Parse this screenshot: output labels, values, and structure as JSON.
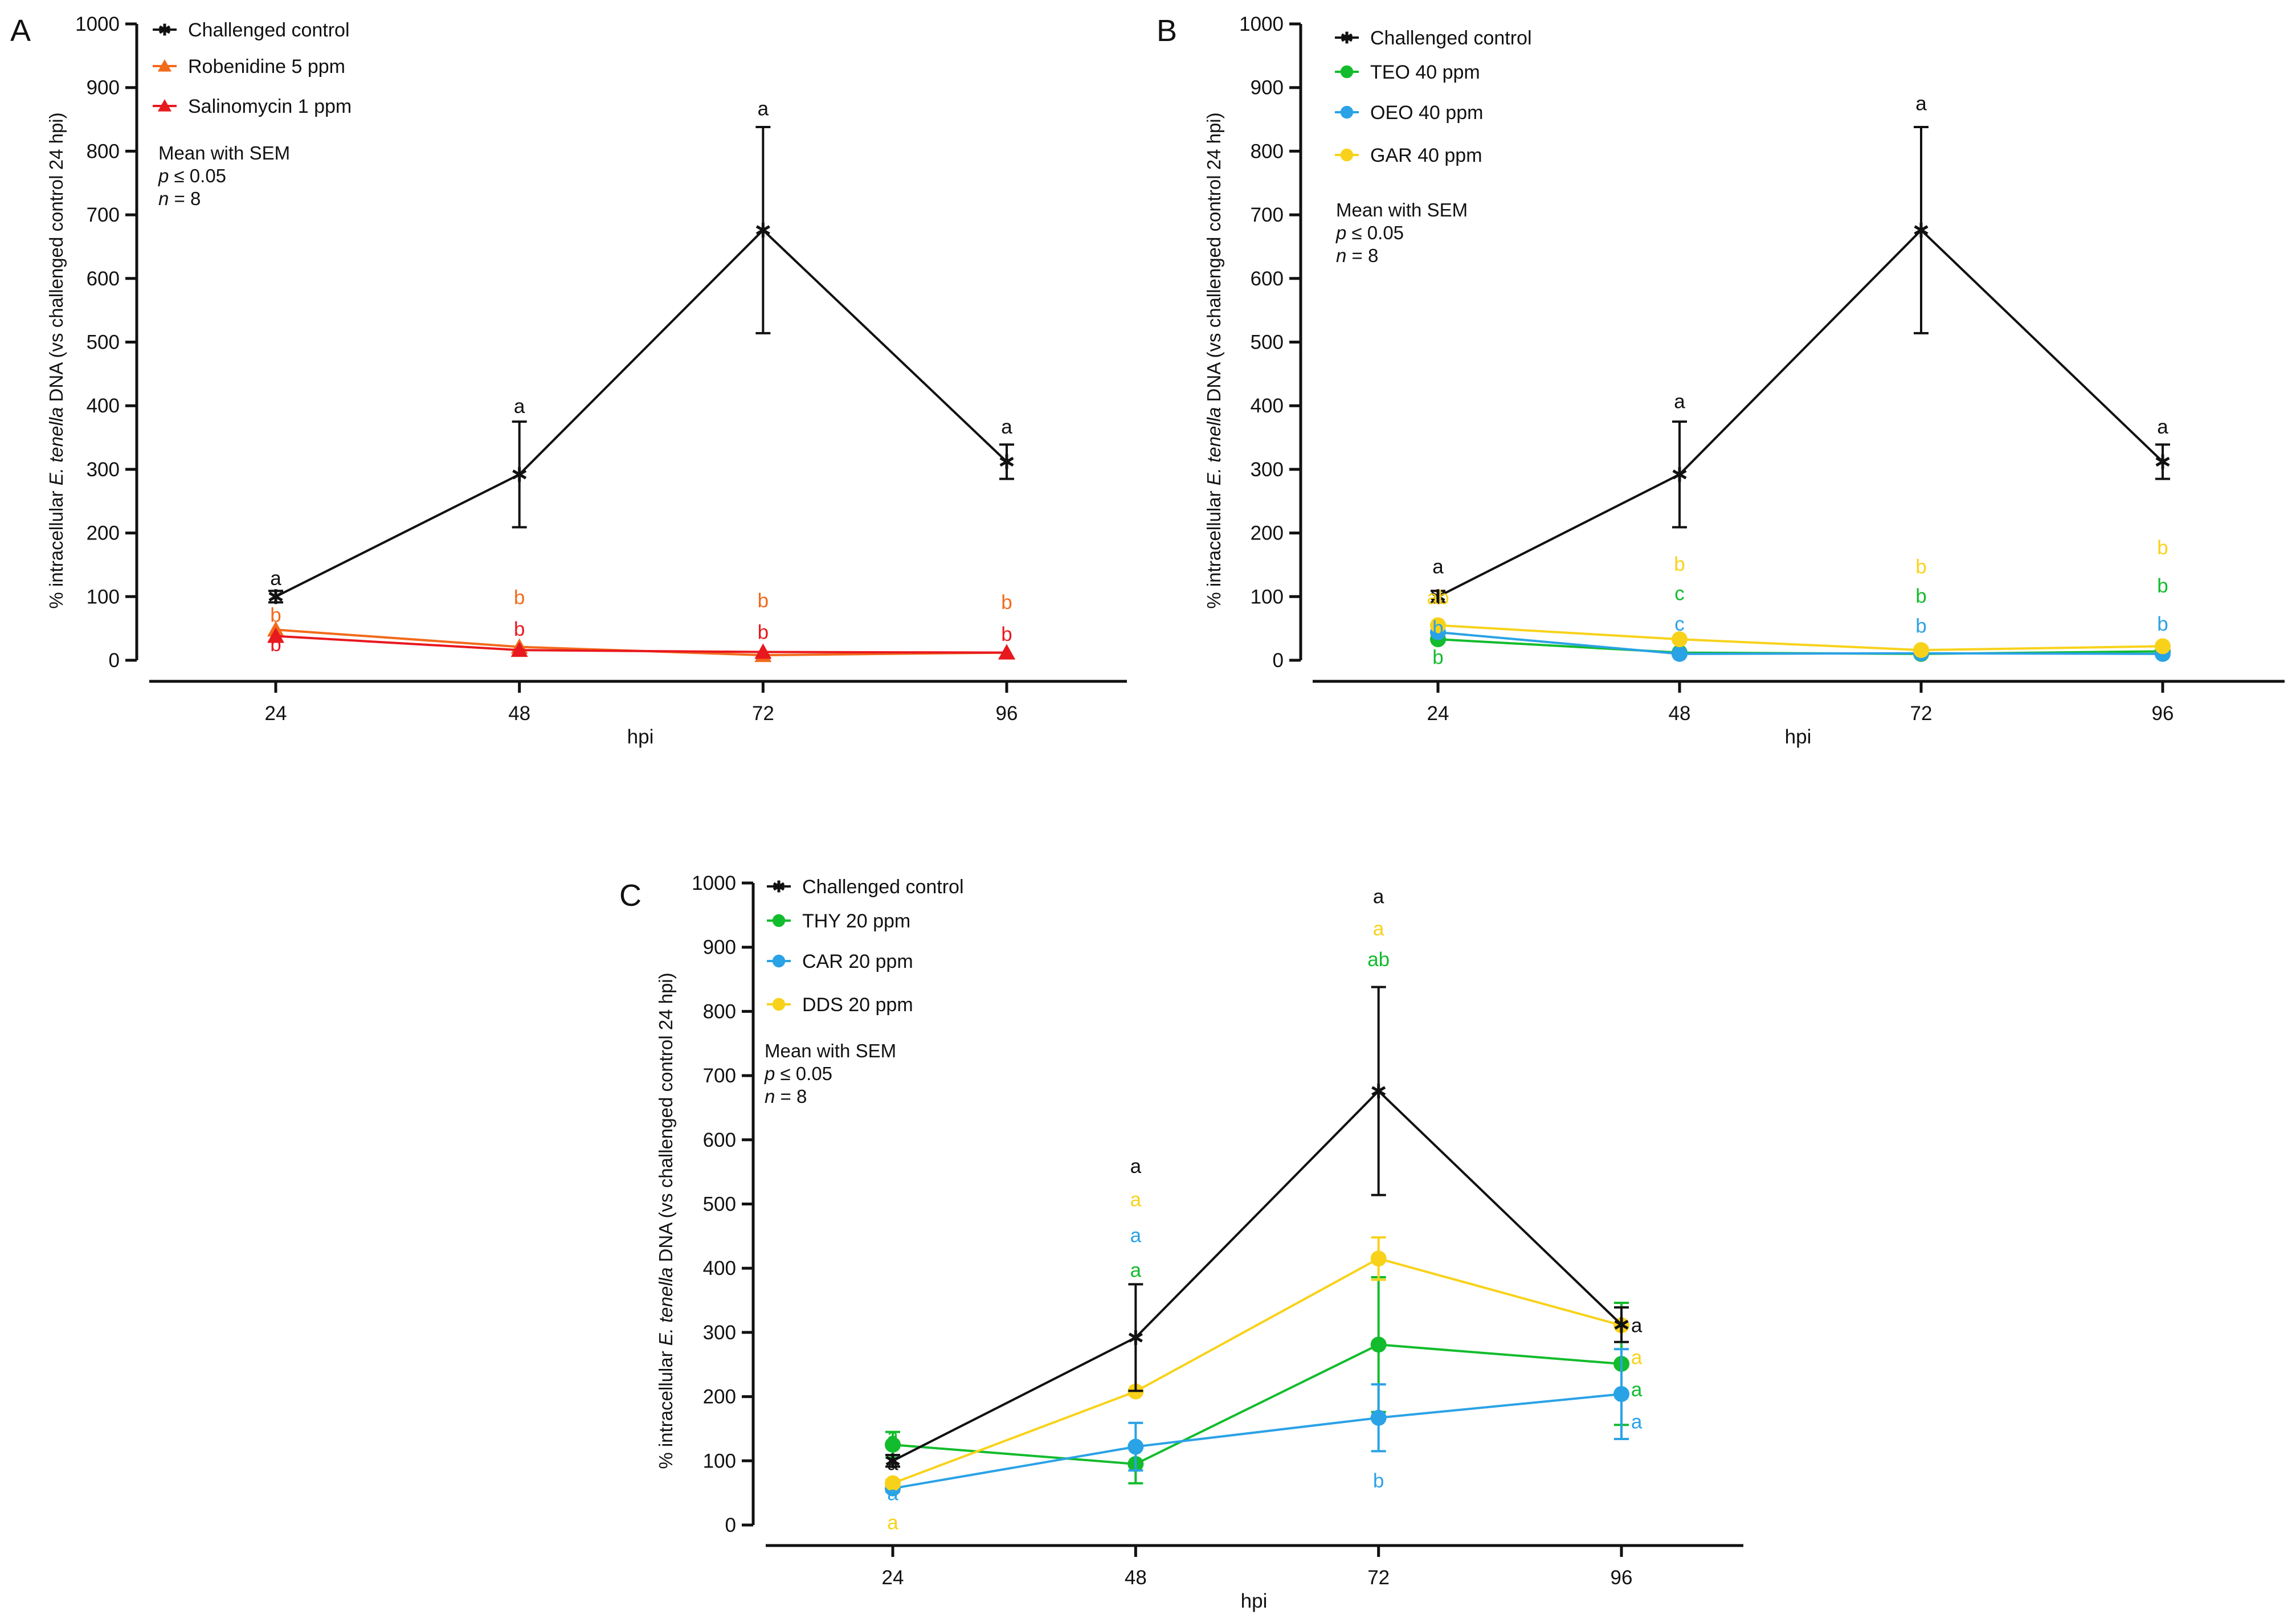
{
  "colors": {
    "black": "#111111",
    "robenidine": "#F26A1B",
    "salinomycin": "#E8181F",
    "green": "#12BC2C",
    "blue": "#2AA2E6",
    "yellow": "#F8D21A"
  },
  "chart_data": [
    {
      "id": "A",
      "panel_label": "A",
      "type": "line",
      "title": "",
      "xlabel": "hpi",
      "ylabel_pre": "% intracellular ",
      "ylabel_italic": "E. tenella",
      "ylabel_post": " DNA (vs challenged control 24 hpi)",
      "ylim": [
        0,
        1000
      ],
      "y_ticks": [
        0,
        100,
        200,
        300,
        400,
        500,
        600,
        700,
        800,
        900,
        1000
      ],
      "x": [
        24,
        48,
        72,
        96
      ],
      "x_tick_labels": [
        "24",
        "48",
        "72",
        "96"
      ],
      "legend_position": "top-left",
      "series": [
        {
          "name": "Challenged control",
          "color_key": "black",
          "marker": "star",
          "values": [
            100,
            292,
            676,
            312
          ],
          "sem": [
            9,
            83,
            162,
            27
          ]
        },
        {
          "name": "Robenidine 5 ppm",
          "color_key": "robenidine",
          "marker": "triangle",
          "values": [
            48,
            21,
            8,
            12
          ],
          "sem": [
            0,
            0,
            0,
            0
          ]
        },
        {
          "name": "Salinomycin 1 ppm",
          "color_key": "salinomycin",
          "marker": "triangle",
          "values": [
            38,
            16,
            13,
            12
          ],
          "sem": [
            0,
            0,
            0,
            0
          ]
        }
      ],
      "stats_note": [
        "Mean with SEM",
        "p ≤ 0.05",
        "n = 8"
      ],
      "annotations": [
        {
          "text": "a",
          "x": 24,
          "y": 130,
          "color_key": "black"
        },
        {
          "text": "b",
          "x": 24,
          "y": 72,
          "color_key": "robenidine"
        },
        {
          "text": "b",
          "x": 24,
          "y": 26,
          "color_key": "salinomycin"
        },
        {
          "text": "a",
          "x": 48,
          "y": 400,
          "color_key": "black"
        },
        {
          "text": "b",
          "x": 48,
          "y": 100,
          "color_key": "robenidine"
        },
        {
          "text": "b",
          "x": 48,
          "y": 50,
          "color_key": "salinomycin"
        },
        {
          "text": "a",
          "x": 72,
          "y": 868,
          "color_key": "black"
        },
        {
          "text": "b",
          "x": 72,
          "y": 95,
          "color_key": "robenidine"
        },
        {
          "text": "b",
          "x": 72,
          "y": 45,
          "color_key": "salinomycin"
        },
        {
          "text": "a",
          "x": 96,
          "y": 368,
          "color_key": "black"
        },
        {
          "text": "b",
          "x": 96,
          "y": 92,
          "color_key": "robenidine"
        },
        {
          "text": "b",
          "x": 96,
          "y": 42,
          "color_key": "salinomycin"
        }
      ]
    },
    {
      "id": "B",
      "panel_label": "B",
      "type": "line",
      "title": "",
      "xlabel": "hpi",
      "ylabel_pre": "% intracellular ",
      "ylabel_italic": "E. tenella",
      "ylabel_post": " DNA (vs challenged control 24 hpi)",
      "ylim": [
        0,
        1000
      ],
      "y_ticks": [
        0,
        100,
        200,
        300,
        400,
        500,
        600,
        700,
        800,
        900,
        1000
      ],
      "x": [
        24,
        48,
        72,
        96
      ],
      "x_tick_labels": [
        "24",
        "48",
        "72",
        "96"
      ],
      "legend_position": "top-left",
      "series": [
        {
          "name": "Challenged control",
          "color_key": "black",
          "marker": "star",
          "values": [
            100,
            292,
            676,
            312
          ],
          "sem": [
            9,
            83,
            162,
            27
          ]
        },
        {
          "name": "TEO 40 ppm",
          "color_key": "green",
          "marker": "circle",
          "values": [
            33,
            12,
            10,
            14
          ],
          "sem": [
            0,
            0,
            0,
            0
          ]
        },
        {
          "name": "OEO 40 ppm",
          "color_key": "blue",
          "marker": "circle",
          "values": [
            44,
            10,
            11,
            10
          ],
          "sem": [
            0,
            0,
            0,
            0
          ]
        },
        {
          "name": "GAR 40 ppm",
          "color_key": "yellow",
          "marker": "circle",
          "values": [
            55,
            33,
            16,
            22
          ],
          "sem": [
            0,
            0,
            0,
            0
          ]
        }
      ],
      "stats_note": [
        "Mean with SEM",
        "p ≤ 0.05",
        "n = 8"
      ],
      "annotations": [
        {
          "text": "a",
          "x": 24,
          "y": 148,
          "color_key": "black"
        },
        {
          "text": "ab",
          "x": 24,
          "y": 100,
          "color_key": "yellow"
        },
        {
          "text": "b",
          "x": 24,
          "y": 52,
          "color_key": "blue"
        },
        {
          "text": "b",
          "x": 24,
          "y": 6,
          "color_key": "green"
        },
        {
          "text": "a",
          "x": 48,
          "y": 408,
          "color_key": "black"
        },
        {
          "text": "b",
          "x": 48,
          "y": 152,
          "color_key": "yellow"
        },
        {
          "text": "c",
          "x": 48,
          "y": 106,
          "color_key": "green"
        },
        {
          "text": "c",
          "x": 48,
          "y": 58,
          "color_key": "blue"
        },
        {
          "text": "a",
          "x": 72,
          "y": 876,
          "color_key": "black"
        },
        {
          "text": "b",
          "x": 72,
          "y": 148,
          "color_key": "yellow"
        },
        {
          "text": "b",
          "x": 72,
          "y": 102,
          "color_key": "green"
        },
        {
          "text": "b",
          "x": 72,
          "y": 55,
          "color_key": "blue"
        },
        {
          "text": "a",
          "x": 96,
          "y": 368,
          "color_key": "black"
        },
        {
          "text": "b",
          "x": 96,
          "y": 178,
          "color_key": "yellow"
        },
        {
          "text": "b",
          "x": 96,
          "y": 118,
          "color_key": "green"
        },
        {
          "text": "b",
          "x": 96,
          "y": 58,
          "color_key": "blue"
        }
      ]
    },
    {
      "id": "C",
      "panel_label": "C",
      "type": "line",
      "title": "",
      "xlabel": "hpi",
      "ylabel_pre": "% intracellular ",
      "ylabel_italic": "E. tenella",
      "ylabel_post": " DNA (vs challenged control 24 hpi)",
      "ylim": [
        0,
        1000
      ],
      "y_ticks": [
        0,
        100,
        200,
        300,
        400,
        500,
        600,
        700,
        800,
        900,
        1000
      ],
      "x": [
        24,
        48,
        72,
        96
      ],
      "x_tick_labels": [
        "24",
        "48",
        "72",
        "96"
      ],
      "legend_position": "top-left",
      "series": [
        {
          "name": "Challenged control",
          "color_key": "black",
          "marker": "star",
          "values": [
            100,
            292,
            676,
            312
          ],
          "sem": [
            9,
            83,
            162,
            27
          ]
        },
        {
          "name": "THY 20 ppm",
          "color_key": "green",
          "marker": "circle",
          "values": [
            125,
            95,
            281,
            251
          ],
          "sem": [
            20,
            30,
            105,
            95
          ]
        },
        {
          "name": "CAR 20 ppm",
          "color_key": "blue",
          "marker": "circle",
          "values": [
            57,
            122,
            167,
            204
          ],
          "sem": [
            5,
            37,
            52,
            70
          ]
        },
        {
          "name": "DDS 20 ppm",
          "color_key": "yellow",
          "marker": "circle",
          "values": [
            65,
            208,
            415,
            311
          ],
          "sem": [
            5,
            0,
            33,
            0
          ]
        }
      ],
      "stats_note": [
        "Mean with SEM",
        "p ≤ 0.05",
        "n = 8"
      ],
      "annotations": [
        {
          "text": "a",
          "x": 24,
          "y": 140,
          "color_key": "green"
        },
        {
          "text": "a",
          "x": 24,
          "y": 97,
          "color_key": "black"
        },
        {
          "text": "a",
          "x": 24,
          "y": 50,
          "color_key": "blue"
        },
        {
          "text": "a",
          "x": 24,
          "y": 5,
          "color_key": "yellow"
        },
        {
          "text": "a",
          "x": 48,
          "y": 560,
          "color_key": "black"
        },
        {
          "text": "a",
          "x": 48,
          "y": 508,
          "color_key": "yellow"
        },
        {
          "text": "a",
          "x": 48,
          "y": 452,
          "color_key": "blue"
        },
        {
          "text": "a",
          "x": 48,
          "y": 398,
          "color_key": "green"
        },
        {
          "text": "a",
          "x": 72,
          "y": 980,
          "color_key": "black"
        },
        {
          "text": "a",
          "x": 72,
          "y": 930,
          "color_key": "yellow"
        },
        {
          "text": "ab",
          "x": 72,
          "y": 882,
          "color_key": "green"
        },
        {
          "text": "b",
          "x": 72,
          "y": 70,
          "color_key": "blue"
        },
        {
          "text": "a",
          "x": 97.5,
          "y": 312,
          "color_key": "black"
        },
        {
          "text": "a",
          "x": 97.5,
          "y": 262,
          "color_key": "yellow"
        },
        {
          "text": "a",
          "x": 97.5,
          "y": 212,
          "color_key": "green"
        },
        {
          "text": "a",
          "x": 97.5,
          "y": 162,
          "color_key": "blue"
        }
      ]
    }
  ]
}
